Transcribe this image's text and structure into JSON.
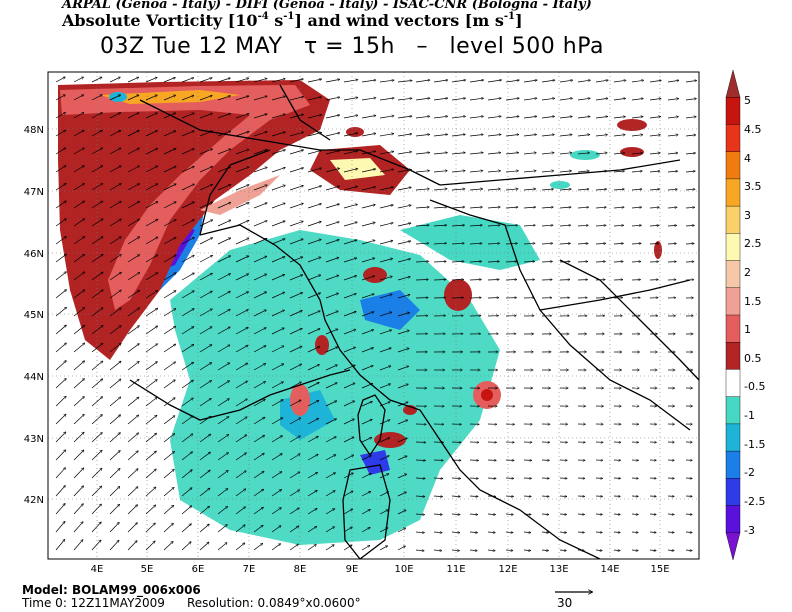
{
  "header": {
    "institutions": "ARPAL (Genoa - Italy)  -  DIFI (Genoa - Italy)  -  ISAC-CNR (Bologna - Italy)",
    "field_title_prefix": "Absolute Vorticity [10",
    "field_title_exp1": "-4",
    "field_title_mid": " s",
    "field_title_exp2": "-1",
    "field_title_suffix": "] and wind vectors [m s",
    "field_title_exp3": "-1",
    "field_title_end": "]",
    "valid_time": "03Z Tue 12 MAY",
    "lead_time": "τ = 15h",
    "separator": "–",
    "level": "level 500 hPa"
  },
  "map": {
    "lon_ticks": [
      "4E",
      "5E",
      "6E",
      "7E",
      "8E",
      "9E",
      "10E",
      "11E",
      "12E",
      "13E",
      "14E",
      "15E"
    ],
    "lat_ticks": [
      "48N",
      "47N",
      "46N",
      "45N",
      "44N",
      "43N",
      "42N"
    ],
    "colors": {
      "coast": "#000000",
      "wind_vector": "#000000",
      "grid": "#777777"
    }
  },
  "colorbar": {
    "labels": [
      "5",
      "4.5",
      "4",
      "3.5",
      "3",
      "2.5",
      "2",
      "1.5",
      "1",
      "0.5",
      "-0.5",
      "-1",
      "-1.5",
      "-2",
      "-2.5",
      "-3"
    ],
    "colors": [
      "#a02d2d",
      "#c8140e",
      "#e8341a",
      "#f07c10",
      "#f7a723",
      "#fad169",
      "#fdf8b2",
      "#f6c8a9",
      "#f0a195",
      "#e55e5e",
      "#b22424",
      "#ffffff",
      "#46d8c2",
      "#1eb4d8",
      "#1a7fe6",
      "#2d3be8",
      "#5b10dc",
      "#7a10d0"
    ]
  },
  "footer": {
    "model": "Model: BOLAM99_006x006",
    "time0": "Time 0: 12Z11MAY2009",
    "resolution": "Resolution: 0.0849°x0.0600°",
    "ref_vector_label": "30"
  }
}
